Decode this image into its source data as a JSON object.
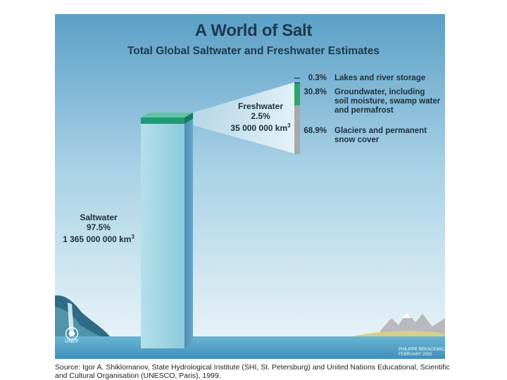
{
  "title": "A World of Salt",
  "subtitle": "Total Global Saltwater and Freshwater Estimates",
  "colors": {
    "sky_top": "#5b9fc6",
    "sky_bottom": "#e6f2f7",
    "saltwater_column": "#8fcbdc",
    "freshwater_top": "#1f9a78",
    "lakes": "#1e4f8f",
    "groundwater": "#2aa66a",
    "glaciers": "#a8a8a8"
  },
  "chart_data": {
    "type": "bar",
    "title": "A World of Salt",
    "subtitle": "Total Global Saltwater and Freshwater Estimates",
    "series": [
      {
        "name": "Saltwater",
        "percent": 97.5,
        "percent_label": "97.5%",
        "volume_label": "1 365 000 000 km",
        "volume_km3": 1365000000
      },
      {
        "name": "Freshwater",
        "percent": 2.5,
        "percent_label": "2.5%",
        "volume_label": "35 000 000 km",
        "volume_km3": 35000000
      }
    ],
    "freshwater_breakdown": [
      {
        "key": "lakes",
        "percent": 0.3,
        "label": "0.3%",
        "text": "Lakes and river storage"
      },
      {
        "key": "groundwater",
        "percent": 30.8,
        "label": "30.8%",
        "text": "Groundwater, including soil moisture, swamp water and permafrost"
      },
      {
        "key": "glaciers",
        "percent": 68.9,
        "label": "68.9%",
        "text": "Glaciers and permanent snow cover"
      }
    ],
    "unit_superscript": "3"
  },
  "labels": {
    "lakes_text": "Lakes and river storage",
    "groundwater_lines": [
      "Groundwater, including",
      "soil moisture, swamp water",
      "and permafrost"
    ],
    "glaciers_lines": [
      "Glaciers and permanent",
      "snow cover"
    ]
  },
  "credit_lines": [
    "PHILIPPE REKACEWICZ",
    "FEBRUARY 2002"
  ],
  "logo_text": "UNEP",
  "source_text": "Source: Igor A. Shiklomanov, State Hydrological Institute (SHI, St. Petersburg) and United Nations Educational, Scientific and Cultural Organisation (UNESCO, Paris), 1999."
}
